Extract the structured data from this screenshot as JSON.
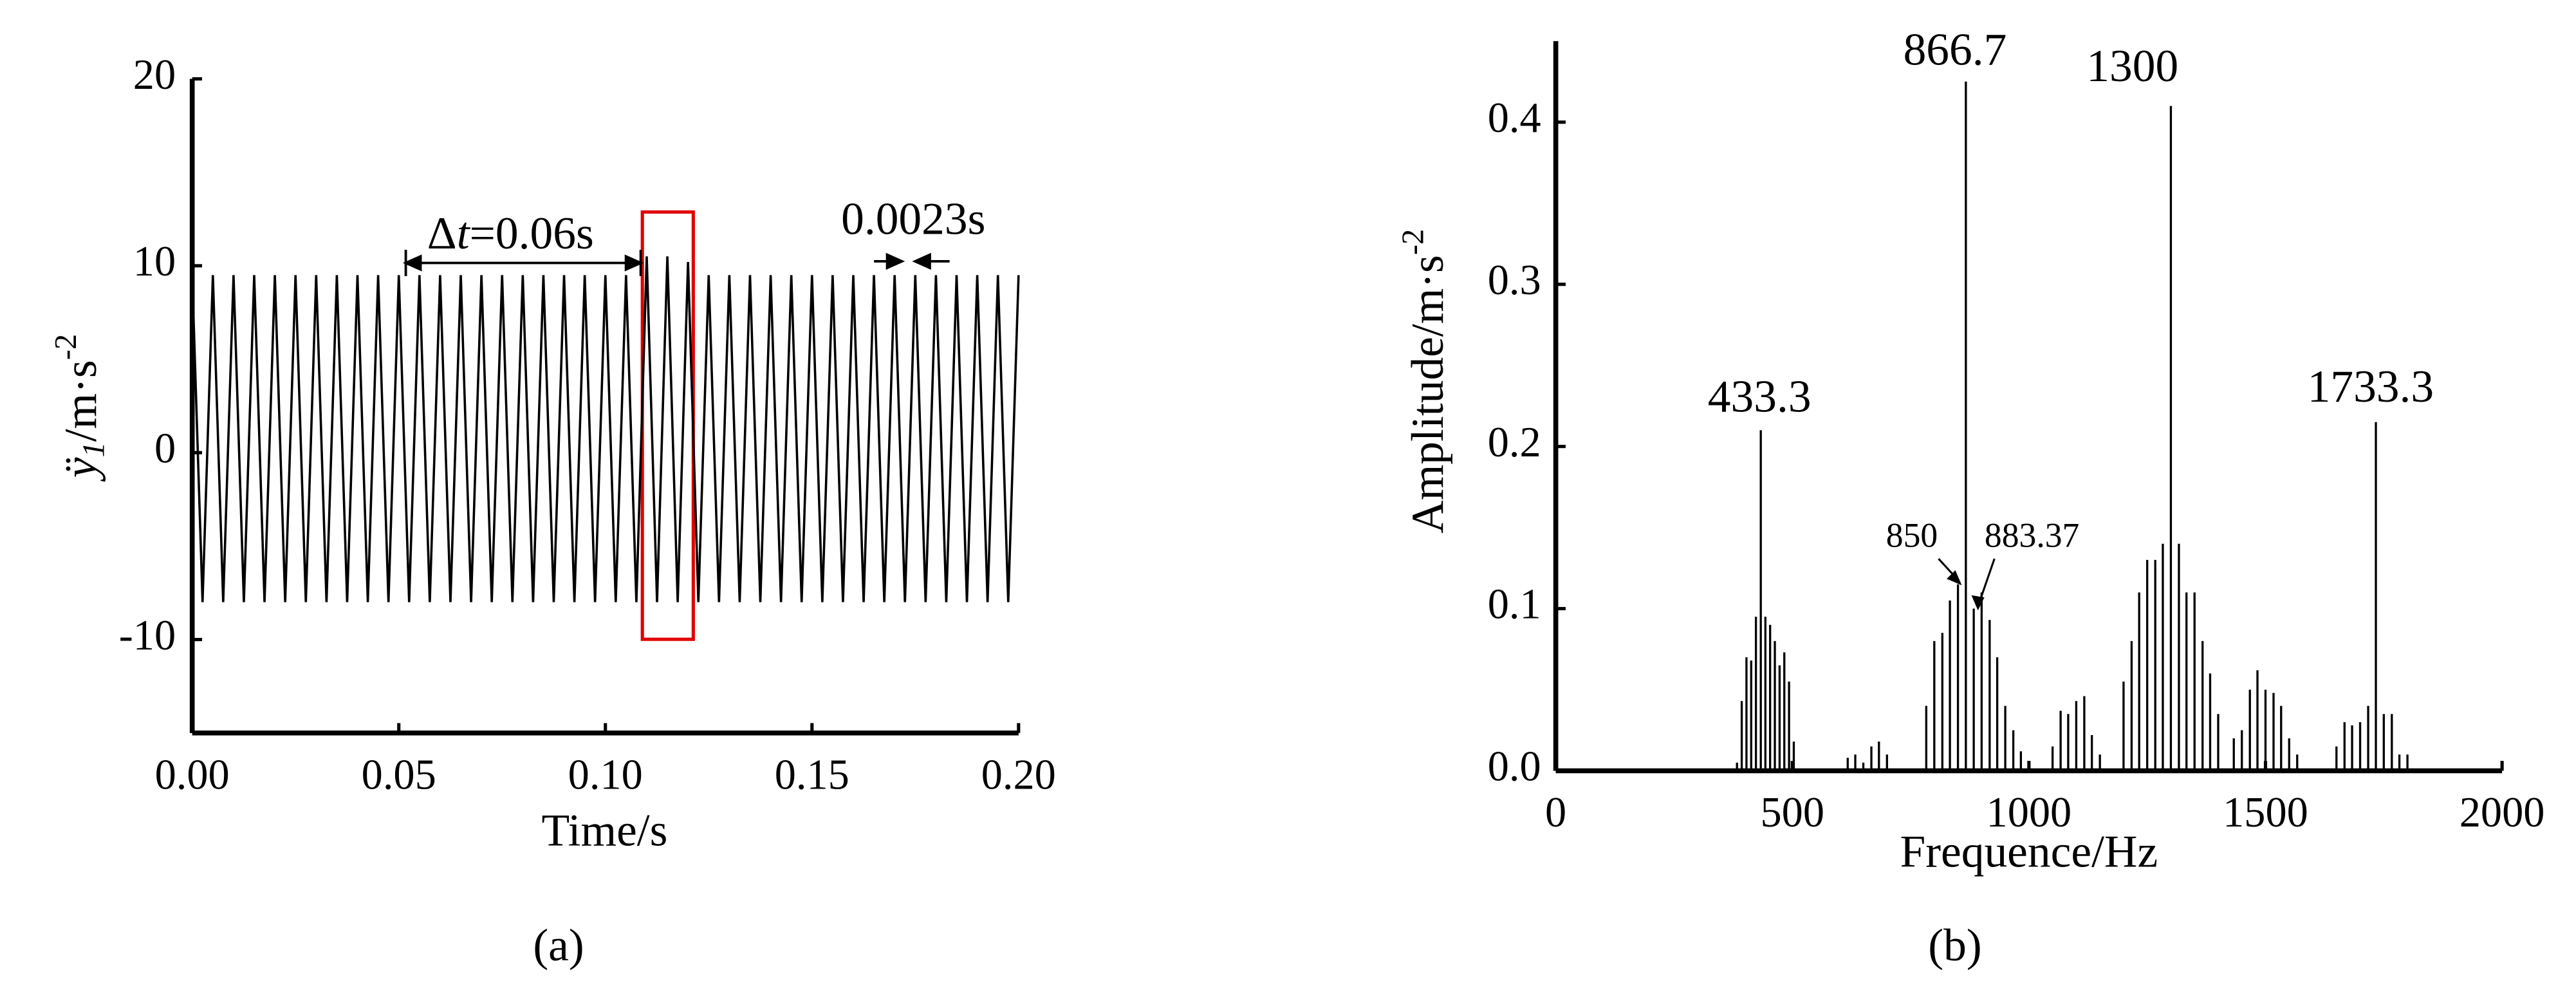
{
  "chart_data": [
    {
      "type": "line",
      "x_label": "Time/s",
      "y_label": {
        "symbol": "ÿ",
        "subscript": "1",
        "unit": "/m·s",
        "exponent": "-2"
      },
      "x": [
        0,
        0.0025,
        0.005,
        0.0075,
        0.01,
        0.0125,
        0.015,
        0.0175,
        0.02,
        0.0225,
        0.025,
        0.0275,
        0.03,
        0.0325,
        0.035,
        0.0375,
        0.04,
        0.0425,
        0.045,
        0.0475,
        0.05,
        0.0525,
        0.055,
        0.0575,
        0.06,
        0.0625,
        0.065,
        0.0675,
        0.07,
        0.0725,
        0.075,
        0.0775,
        0.08,
        0.0825,
        0.085,
        0.0875,
        0.09,
        0.0925,
        0.095,
        0.0975,
        0.1,
        0.1025,
        0.105,
        0.1075,
        0.11,
        0.1125,
        0.115,
        0.1175,
        0.12,
        0.1225,
        0.125,
        0.1275,
        0.13,
        0.1325,
        0.135,
        0.1375,
        0.14,
        0.1425,
        0.145,
        0.1475,
        0.15,
        0.1525,
        0.155,
        0.1575,
        0.16,
        0.1625,
        0.165,
        0.1675,
        0.17,
        0.1725,
        0.175,
        0.1775,
        0.18,
        0.1825,
        0.185,
        0.1875,
        0.19,
        0.1925,
        0.195,
        0.1975,
        0.2
      ],
      "values": [
        9.5,
        -8,
        9.5,
        -8,
        9.5,
        -8,
        9.5,
        -8,
        9.5,
        -8,
        9.5,
        -8,
        9.5,
        -8,
        9.5,
        -8,
        9.5,
        -8,
        9.5,
        -8,
        9.5,
        -8,
        9.5,
        -8,
        9.5,
        -8,
        9.5,
        -8,
        9.5,
        -8,
        9.5,
        -8,
        9.5,
        -8,
        9.5,
        -8,
        9.5,
        -8,
        9.5,
        -8,
        9.5,
        -8,
        9.5,
        -8,
        10.5,
        -8,
        10.5,
        -8,
        10.2,
        -8,
        9.5,
        -8,
        9.5,
        -8,
        9.5,
        -8,
        9.5,
        -8,
        9.5,
        -8,
        9.5,
        -8,
        9.5,
        -8,
        9.5,
        -8,
        9.5,
        -8,
        9.5,
        -8,
        9.5,
        -8,
        9.5,
        -8,
        9.5,
        -8,
        9.5,
        -8,
        9.5,
        -8,
        9.5
      ],
      "color": "#000000",
      "xlim": [
        0,
        0.2
      ],
      "xticks": [
        {
          "value": 0,
          "label": "0.00"
        },
        0.05,
        {
          "value": 0.1,
          "label": "0.10"
        },
        0.15,
        {
          "value": 0.2,
          "label": "0.20"
        }
      ],
      "ylim": [
        -15,
        20
      ],
      "yticks": [
        -10,
        0,
        10,
        20
      ],
      "annotations": {
        "delta": "Δ",
        "t": "t",
        "dt_value": "=0.06s",
        "period": "0.0023s"
      },
      "caption": "(a)"
    },
    {
      "type": "stem",
      "x_label": "Frequence/Hz",
      "y_label": {
        "text": "Amplitude/m·s",
        "exponent": "-2"
      },
      "x": [
        383,
        393,
        403,
        413,
        423,
        433.3,
        443,
        453,
        463,
        473,
        483,
        493,
        503,
        617,
        633,
        650,
        667,
        683,
        700,
        783,
        800,
        817,
        833,
        850,
        866.7,
        883.37,
        900,
        917,
        933,
        950,
        967,
        983,
        1050,
        1067,
        1083,
        1100,
        1117,
        1133,
        1150,
        1200,
        1217,
        1233,
        1250,
        1267,
        1283,
        1300,
        1317,
        1333,
        1350,
        1367,
        1383,
        1400,
        1433,
        1450,
        1467,
        1483,
        1500,
        1517,
        1533,
        1550,
        1567,
        1650,
        1667,
        1683,
        1700,
        1717,
        1733.3,
        1750,
        1767,
        1783,
        1800
      ],
      "values": [
        0.005,
        0.043,
        0.07,
        0.068,
        0.095,
        0.21,
        0.095,
        0.09,
        0.08,
        0.065,
        0.073,
        0.055,
        0.018,
        0.008,
        0.01,
        0.005,
        0.015,
        0.018,
        0.01,
        0.04,
        0.08,
        0.085,
        0.105,
        0.115,
        0.425,
        0.1,
        0.11,
        0.093,
        0.07,
        0.04,
        0.025,
        0.012,
        0.015,
        0.037,
        0.035,
        0.043,
        0.046,
        0.022,
        0.01,
        0.055,
        0.08,
        0.11,
        0.13,
        0.13,
        0.14,
        0.41,
        0.14,
        0.11,
        0.11,
        0.08,
        0.06,
        0.035,
        0.02,
        0.025,
        0.05,
        0.062,
        0.05,
        0.048,
        0.04,
        0.02,
        0.01,
        0.015,
        0.03,
        0.028,
        0.03,
        0.04,
        0.215,
        0.035,
        0.035,
        0.01,
        0.01
      ],
      "color": "#000000",
      "xlim": [
        0,
        2000
      ],
      "xticks": [
        0,
        500,
        1000,
        1500,
        2000
      ],
      "ylim": [
        0,
        0.45
      ],
      "yticks": [
        {
          "value": 0,
          "label": "0.0"
        },
        0.1,
        0.2,
        0.3,
        0.4
      ],
      "annotations": [
        "433.3",
        "866.7",
        "1300",
        "1733.3",
        "850",
        "883.37"
      ],
      "caption": "(b)"
    }
  ]
}
